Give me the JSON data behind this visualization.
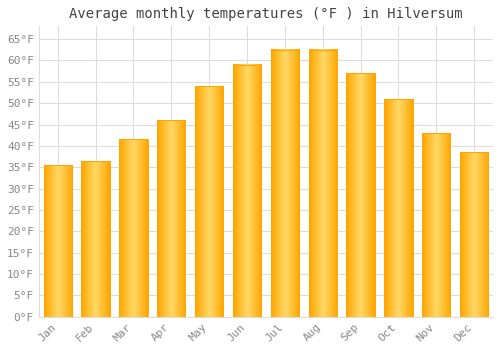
{
  "title": "Average monthly temperatures (°F ) in Hilversum",
  "months": [
    "Jan",
    "Feb",
    "Mar",
    "Apr",
    "May",
    "Jun",
    "Jul",
    "Aug",
    "Sep",
    "Oct",
    "Nov",
    "Dec"
  ],
  "values": [
    35.5,
    36.5,
    41.5,
    46.0,
    54.0,
    59.0,
    62.5,
    62.5,
    57.0,
    51.0,
    43.0,
    38.5
  ],
  "bar_color_center": "#FFD966",
  "bar_color_edge": "#FFA500",
  "background_color": "#FFFFFF",
  "grid_color": "#DDDDDD",
  "ylim": [
    0,
    68
  ],
  "yticks": [
    0,
    5,
    10,
    15,
    20,
    25,
    30,
    35,
    40,
    45,
    50,
    55,
    60,
    65
  ],
  "title_fontsize": 10,
  "tick_fontsize": 8,
  "tick_color": "#888888",
  "bar_width": 0.75
}
